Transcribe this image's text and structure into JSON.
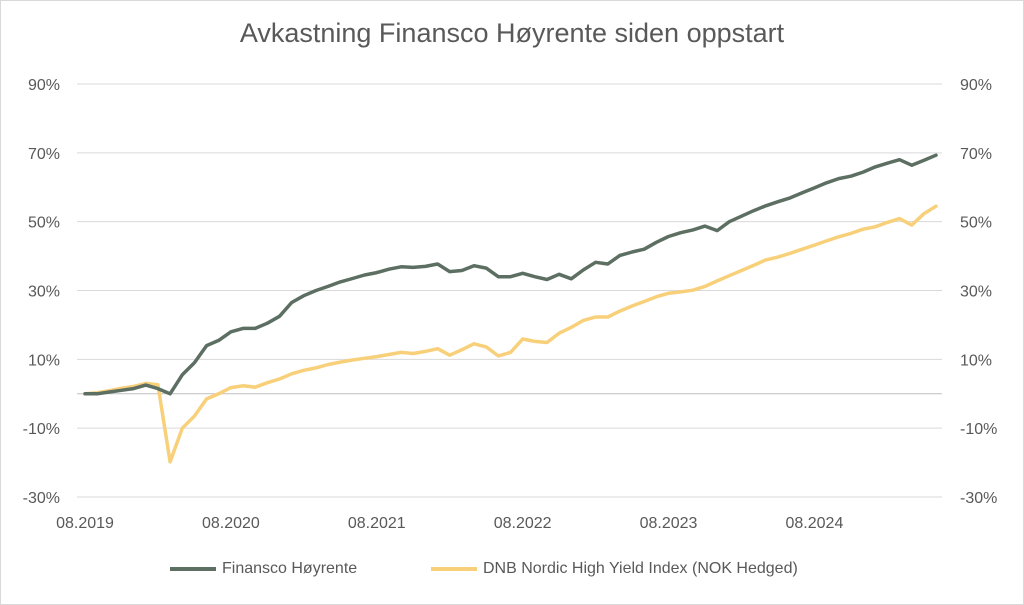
{
  "chart_data": {
    "type": "line",
    "title": "Avkastning Finansco Høyrente siden oppstart",
    "xlabel": "",
    "ylabel": "",
    "x_tick_labels": [
      "08.2019",
      "08.2020",
      "08.2021",
      "08.2022",
      "08.2023",
      "08.2024"
    ],
    "y_tick_labels": [
      "-30%",
      "-10%",
      "10%",
      "30%",
      "50%",
      "70%",
      "90%"
    ],
    "y_ticks": [
      -30,
      -10,
      10,
      30,
      50,
      70,
      90
    ],
    "ylim": [
      -30,
      90
    ],
    "grid": true,
    "legend_position": "bottom",
    "x_start": "08.2019",
    "series": [
      {
        "name": "Finansco Høyrente",
        "color": "#5d6f62",
        "values": [
          0,
          0,
          0.5,
          1,
          1.5,
          2.5,
          1.5,
          0,
          5.5,
          9,
          14,
          15.5,
          18,
          19,
          19,
          20.5,
          22.5,
          26.5,
          28.5,
          30,
          31.2,
          32.5,
          33.5,
          34.5,
          35.2,
          36.2,
          36.9,
          36.7,
          37,
          37.7,
          35.5,
          35.8,
          37.2,
          36.5,
          34,
          34,
          35,
          34,
          33.2,
          34.7,
          33.4,
          36,
          38.2,
          37.7,
          40.2,
          41.2,
          42,
          44,
          45.7,
          46.8,
          47.6,
          48.7,
          47.4,
          50,
          51.6,
          53.2,
          54.6,
          55.8,
          56.9,
          58.4,
          59.8,
          61.3,
          62.5,
          63.2,
          64.4,
          65.9,
          67,
          68,
          66.4,
          67.8,
          69.3
        ]
      },
      {
        "name": "DNB Nordic High Yield Index (NOK Hedged)",
        "color": "#f8d07a",
        "values": [
          0,
          0.3,
          0.9,
          1.6,
          2.1,
          3,
          2.6,
          -19.8,
          -10,
          -6.5,
          -1.5,
          0,
          1.8,
          2.3,
          1.9,
          3.2,
          4.3,
          5.8,
          6.8,
          7.5,
          8.5,
          9.2,
          9.8,
          10.3,
          10.8,
          11.4,
          12,
          11.7,
          12.3,
          13.1,
          11.2,
          12.8,
          14.5,
          13.6,
          11,
          12,
          15.9,
          15.2,
          14.9,
          17.6,
          19.3,
          21.3,
          22.3,
          22.3,
          24,
          25.5,
          26.8,
          28.2,
          29.2,
          29.6,
          30.1,
          31.2,
          32.8,
          34.3,
          35.8,
          37.3,
          38.9,
          39.7,
          40.8,
          42,
          43.2,
          44.4,
          45.6,
          46.6,
          47.8,
          48.5,
          49.8,
          50.9,
          49,
          52.3,
          54.5
        ]
      }
    ]
  }
}
